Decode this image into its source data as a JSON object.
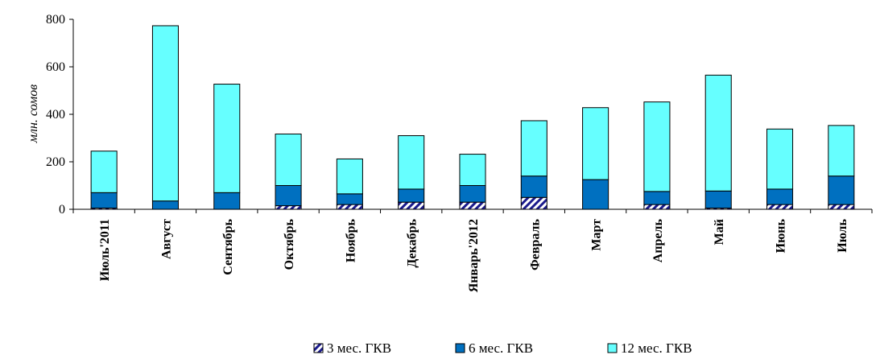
{
  "chart_data": {
    "type": "bar",
    "stacked": true,
    "ylabel": "млн. сомов",
    "ylim": [
      0,
      800
    ],
    "yticks": [
      0,
      200,
      400,
      600,
      800
    ],
    "grid": false,
    "legend_position": "bottom",
    "categories": [
      "Июль'2011",
      "Август",
      "Сентябрь",
      "Октябрь",
      "Ноябрь",
      "Декабрь",
      "Январь'2012",
      "Февраль",
      "Март",
      "Апрель",
      "Май",
      "Июнь",
      "Июль"
    ],
    "series": [
      {
        "name": "3 мес. ГКВ",
        "color": "#1a1a8c",
        "pattern": "diagonal-hatch",
        "values": [
          5,
          0,
          0,
          15,
          20,
          30,
          30,
          50,
          0,
          20,
          5,
          20,
          20
        ]
      },
      {
        "name": "6 мес. ГКВ",
        "color": "#0070c0",
        "values": [
          65,
          35,
          70,
          85,
          45,
          55,
          70,
          90,
          125,
          55,
          72,
          65,
          120
        ]
      },
      {
        "name": "12 мес. ГКВ",
        "color": "#66ffff",
        "values": [
          175,
          738,
          457,
          217,
          147,
          225,
          132,
          233,
          303,
          377,
          488,
          253,
          213
        ]
      }
    ]
  }
}
